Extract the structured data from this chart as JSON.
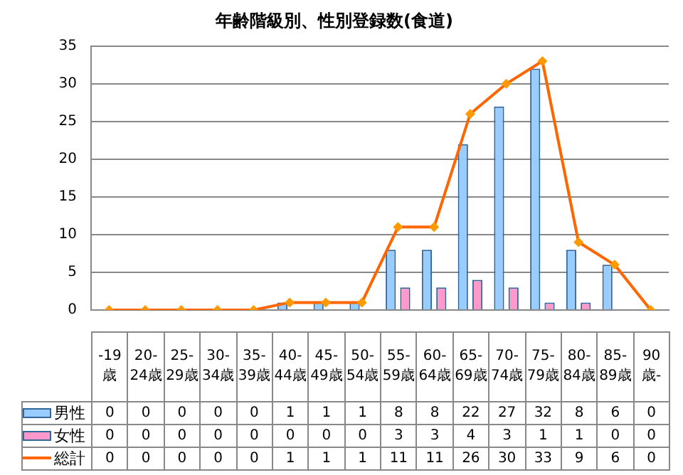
{
  "chart_data": {
    "type": "bar",
    "title": "年齢階級別、性別登録数(食道)",
    "categories": [
      "-19歳",
      "20-24歳",
      "25-29歳",
      "30-34歳",
      "35-39歳",
      "40-44歳",
      "45-49歳",
      "50-54歳",
      "55-59歳",
      "60-64歳",
      "65-69歳",
      "70-74歳",
      "75-79歳",
      "80-84歳",
      "85-89歳",
      "90歳-"
    ],
    "series": [
      {
        "name": "男性",
        "color": "#99ccff",
        "values": [
          0,
          0,
          0,
          0,
          0,
          1,
          1,
          1,
          8,
          8,
          22,
          27,
          32,
          8,
          6,
          0
        ]
      },
      {
        "name": "女性",
        "color": "#ff99cc",
        "values": [
          0,
          0,
          0,
          0,
          0,
          0,
          0,
          0,
          3,
          3,
          4,
          3,
          1,
          1,
          0,
          0
        ]
      },
      {
        "name": "総計",
        "type": "line",
        "color": "#ff6600",
        "marker": "diamond",
        "values": [
          0,
          0,
          0,
          0,
          0,
          1,
          1,
          1,
          11,
          11,
          26,
          30,
          33,
          9,
          6,
          0
        ]
      }
    ],
    "ylim": [
      0,
      35
    ],
    "yticks": [
      0,
      5,
      10,
      15,
      20,
      25,
      30,
      35
    ],
    "grid": "y",
    "legend": "bottom",
    "data_labels": true
  }
}
